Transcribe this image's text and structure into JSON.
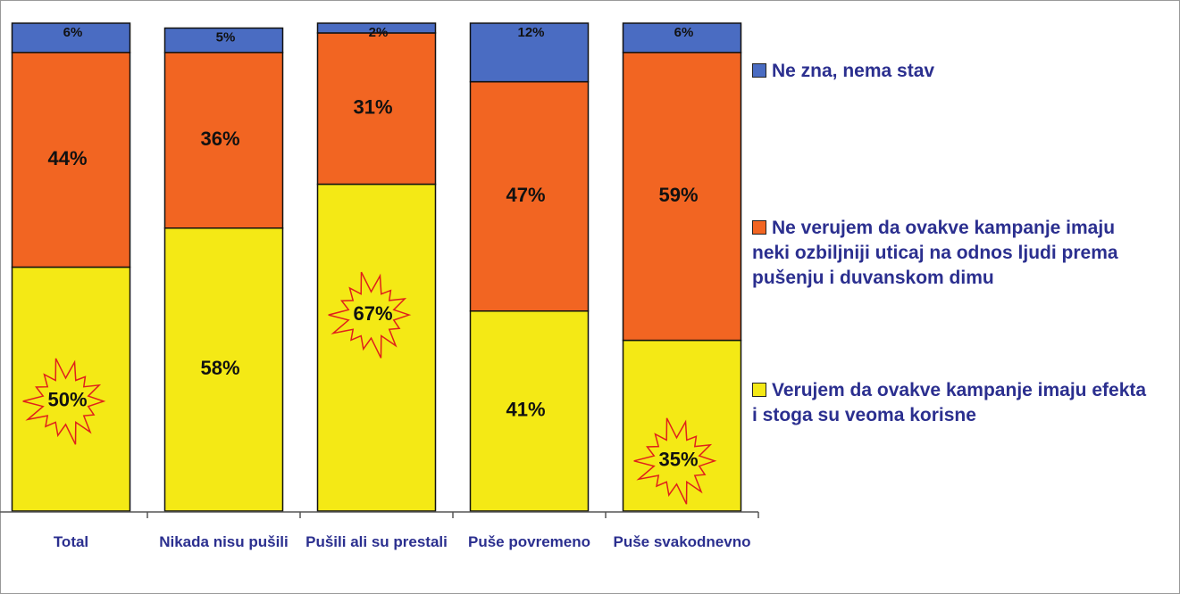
{
  "chart_data": {
    "type": "bar",
    "stacked": true,
    "categories": [
      "Total",
      "Nikada nisu pušili",
      "Pušili ali su prestali",
      "Puše povremeno",
      "Puše svakodnevno"
    ],
    "series": [
      {
        "name": "Verujem da ovakve kampanje imaju efekta i stoga su veoma korisne",
        "color": "#f4e915",
        "values": [
          50,
          58,
          67,
          41,
          35
        ],
        "value_labels": [
          "50%",
          "58%",
          "67%",
          "41%",
          "35%"
        ]
      },
      {
        "name": "Ne verujem da ovakve kampanje imaju neki ozbiljniji uticaj na odnos ljudi prema pušenju i duvanskom dimu",
        "color": "#f26522",
        "values": [
          44,
          36,
          31,
          47,
          59
        ],
        "value_labels": [
          "44%",
          "36%",
          "31%",
          "47%",
          "59%"
        ]
      },
      {
        "name": "Ne zna, nema stav",
        "color": "#4a6cc2",
        "values": [
          6,
          5,
          2,
          12,
          6
        ],
        "value_labels": [
          "6%",
          "5%",
          "2%",
          "12%",
          "6%"
        ]
      }
    ],
    "ylim": [
      0,
      100
    ]
  }
}
